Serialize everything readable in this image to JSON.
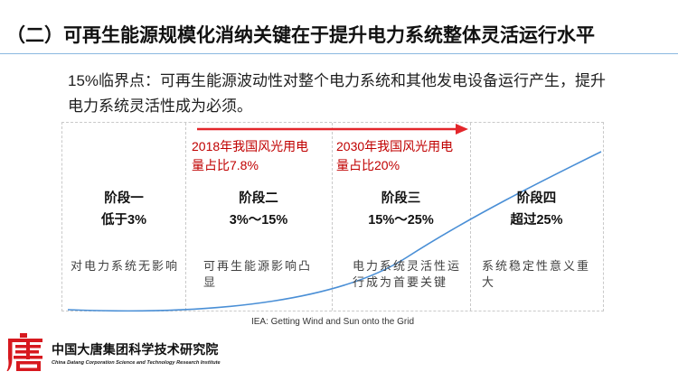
{
  "title": "（二）可再生能源规模化消纳关键在于提升电力系统整体灵活运行水平",
  "body": {
    "lines": [
      "15%临界点：可再生能源波动性对整个电力系统和其他发电设备运行产生，提升",
      "电力系统灵活性成为必须。"
    ]
  },
  "diagram": {
    "milestones": [
      {
        "lines": [
          "2018年我国风光用电",
          "量占比7.8%"
        ]
      },
      {
        "lines": [
          "2030年我国风光用电",
          "量占比20%"
        ]
      }
    ],
    "arrow_icon": "right-arrow-icon",
    "stages": [
      {
        "name": "阶段一",
        "range": "低于3%",
        "description_lines": [
          "对电力系统无影响"
        ]
      },
      {
        "name": "阶段二",
        "range": "3%～15%",
        "description_lines": [
          "可再生能源影响凸",
          "显"
        ]
      },
      {
        "name": "阶段三",
        "range": "15%～25%",
        "description_lines": [
          "电力系统灵活性运",
          "行成为首要关键"
        ]
      },
      {
        "name": "阶段四",
        "range": "超过25%",
        "description_lines": [
          "系统稳定性意义重",
          "大"
        ]
      }
    ],
    "caption": "IEA: Getting Wind and Sun onto the Grid"
  },
  "footer": {
    "logo_icon": "datang-logo-icon",
    "org_name": "中国大唐集团科学技术研究院",
    "org_name_en": "China Datang Corporation Science and Technology Research Institute"
  },
  "colors": {
    "title_text": "#111111",
    "body_text": "#1e1e1e",
    "title_rule": "#8ab8e0",
    "milestone_text": "#c00000",
    "arrow": "#e3262b",
    "curve": "#4a8fd6",
    "description_text": "#404040",
    "dashed_border": "#c9c9c9",
    "logo": "#d7191f"
  }
}
